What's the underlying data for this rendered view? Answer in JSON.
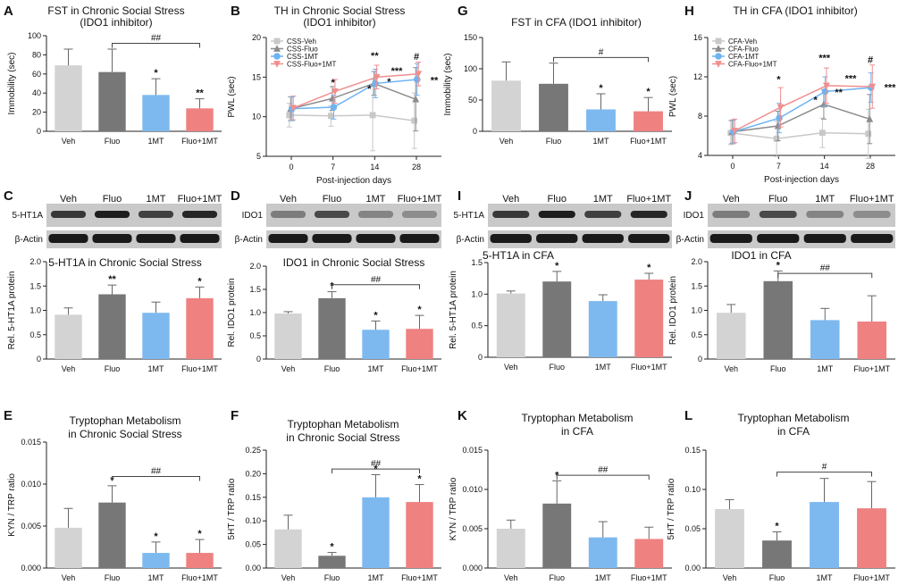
{
  "colors": {
    "veh": "#d3d3d3",
    "fluo": "#777777",
    "mt": "#7db9ef",
    "fluo_mt": "#ef8181",
    "line_veh": "#c8c8c8",
    "line_fluo": "#8c8c8c",
    "line_mt": "#6eb3f2",
    "line_fluo_mt": "#f08f8f"
  },
  "chart_data": [
    {
      "id": "A",
      "type": "bar",
      "title": "FST in Chronic Social Stress",
      "title2": "(IDO1 inhibitor)",
      "ylabel": "Immobility (sec)",
      "ylim": [
        0,
        100
      ],
      "yticks": [
        0,
        20,
        40,
        60,
        80,
        100
      ],
      "ytick_labels": [
        "0",
        "20",
        "40",
        "60",
        "80",
        "100"
      ],
      "categories": [
        "Veh",
        "Fluo",
        "1MT",
        "Fluo+1MT"
      ],
      "values": [
        69,
        62,
        38,
        24
      ],
      "errors": [
        17,
        24,
        17,
        10
      ],
      "stars": [
        "",
        "",
        "*",
        "**"
      ],
      "bracket": {
        "from": 1,
        "to": 3,
        "level": 92,
        "label": "##"
      }
    },
    {
      "id": "B",
      "type": "line",
      "title": "TH in Chronic Social Stress",
      "title2": "(IDO1 inhibitor)",
      "xlabel": "Post-injection days",
      "ylabel": "PWL (sec)",
      "ylim": [
        5,
        20
      ],
      "yticks": [
        5,
        10,
        15,
        20
      ],
      "ytick_labels": [
        "5",
        "10",
        "15",
        "20"
      ],
      "x": [
        "0",
        "7",
        "14",
        "28"
      ],
      "series": [
        {
          "name": "CSS-Veh",
          "values": [
            10.2,
            10.1,
            10.2,
            9.5
          ],
          "errors": [
            1.5,
            1.3,
            4.5,
            3.5
          ],
          "marker": "square",
          "color_key": "line_veh"
        },
        {
          "name": "CSS-Fluo",
          "values": [
            11.0,
            12.3,
            14.2,
            12.2
          ],
          "errors": [
            1.5,
            1.5,
            1.5,
            4.0
          ],
          "marker": "triangle",
          "color_key": "line_fluo"
        },
        {
          "name": "CSS-1MT",
          "values": [
            11.0,
            11.2,
            14.2,
            14.7
          ],
          "errors": [
            1.5,
            1.5,
            1.8,
            2.0
          ],
          "marker": "circle",
          "color_key": "line_mt"
        },
        {
          "name": "CSS-Fluo+1MT",
          "values": [
            11.1,
            13.2,
            15.0,
            15.4
          ],
          "errors": [
            1.5,
            1.5,
            1.5,
            1.5
          ],
          "marker": "triangle-down",
          "color_key": "line_fluo_mt"
        }
      ],
      "annotations": [
        {
          "x": 1,
          "y": 13.9,
          "label": "*"
        },
        {
          "x": 2,
          "y": 17.3,
          "label": "**"
        },
        {
          "x": 2,
          "y": 14.0,
          "label": "*",
          "dx": 16
        },
        {
          "x": 2,
          "y": 13.1,
          "label": "*",
          "dx": -6
        },
        {
          "x": 3,
          "y": 17.2,
          "label": "#"
        },
        {
          "x": 3,
          "y": 15.4,
          "label": "***",
          "dx": -22
        },
        {
          "x": 3,
          "y": 14.2,
          "label": "**",
          "dx": 20
        }
      ]
    },
    {
      "id": "G",
      "type": "bar",
      "title": "FST in CFA (IDO1 inhibitor)",
      "ylabel": "Immobility (sec)",
      "ylim": [
        0,
        150
      ],
      "yticks": [
        0,
        50,
        100,
        150
      ],
      "ytick_labels": [
        "0",
        "50",
        "100",
        "150"
      ],
      "categories": [
        "Veh",
        "Fluo",
        "1MT",
        "Fluo+1MT"
      ],
      "values": [
        81,
        76,
        35,
        32
      ],
      "errors": [
        30,
        33,
        25,
        22
      ],
      "stars": [
        "",
        "",
        "*",
        "*"
      ],
      "bracket": {
        "from": 1,
        "to": 3,
        "level": 118,
        "label": "#"
      }
    },
    {
      "id": "H",
      "type": "line",
      "title": "TH in CFA (IDO1 inhibitor)",
      "xlabel": "Post-injection days",
      "ylabel": "PWL (sec)",
      "ylim": [
        4,
        16
      ],
      "yticks": [
        4,
        8,
        12,
        16
      ],
      "ytick_labels": [
        "4",
        "8",
        "12",
        "16"
      ],
      "x": [
        "0",
        "7",
        "14",
        "28"
      ],
      "series": [
        {
          "name": "CFA-Veh",
          "values": [
            6.3,
            5.7,
            6.3,
            6.2
          ],
          "errors": [
            1.2,
            1.8,
            1.5,
            2.5
          ],
          "marker": "square",
          "color_key": "line_veh"
        },
        {
          "name": "CFA-Fluo",
          "values": [
            6.4,
            7.0,
            9.2,
            7.7
          ],
          "errors": [
            1.2,
            1.5,
            1.5,
            2.5
          ],
          "marker": "triangle",
          "color_key": "line_fluo"
        },
        {
          "name": "CFA-1MT",
          "values": [
            6.4,
            7.8,
            10.5,
            10.9
          ],
          "errors": [
            1.2,
            1.5,
            1.5,
            1.5
          ],
          "marker": "circle",
          "color_key": "line_mt"
        },
        {
          "name": "CFA-Fluo+1MT",
          "values": [
            6.5,
            8.9,
            11.1,
            11.0
          ],
          "errors": [
            1.2,
            2.0,
            1.8,
            2.2
          ],
          "marker": "triangle-down",
          "color_key": "line_fluo_mt"
        }
      ],
      "annotations": [
        {
          "x": 1,
          "y": 11.4,
          "label": "*"
        },
        {
          "x": 2,
          "y": 13.6,
          "label": "***"
        },
        {
          "x": 2,
          "y": 10.1,
          "label": "**",
          "dx": 16
        },
        {
          "x": 2,
          "y": 9.3,
          "label": "*",
          "dx": -10
        },
        {
          "x": 3,
          "y": 13.4,
          "label": "#"
        },
        {
          "x": 3,
          "y": 11.5,
          "label": "***",
          "dx": -22
        },
        {
          "x": 3,
          "y": 10.6,
          "label": "***",
          "dx": 22
        }
      ]
    },
    {
      "id": "C",
      "type": "bar",
      "title": "5-HT1A in Chronic Social Stress",
      "ylabel": "Rel. 5-HT1A protein",
      "ylim": [
        0,
        2.0
      ],
      "yticks": [
        0,
        0.5,
        1.0,
        1.5,
        2.0
      ],
      "ytick_labels": [
        "0",
        "0.5",
        "1.0",
        "1.5",
        "2.0"
      ],
      "categories": [
        "Veh",
        "Fluo",
        "1MT",
        "Fluo+1MT"
      ],
      "values": [
        0.91,
        1.33,
        0.95,
        1.25
      ],
      "errors": [
        0.14,
        0.19,
        0.22,
        0.23
      ],
      "stars": [
        "",
        "**",
        "",
        "*"
      ]
    },
    {
      "id": "D",
      "type": "bar",
      "title": "IDO1 in Chronic Social Stress",
      "ylabel": "Rel. IDO1 protein",
      "ylim": [
        0,
        2.0
      ],
      "yticks": [
        0,
        0.5,
        1.0,
        1.5,
        2.0
      ],
      "ytick_labels": [
        "0",
        "0.5",
        "1.0",
        "1.5",
        "2.0"
      ],
      "categories": [
        "Veh",
        "Fluo",
        "1MT",
        "Fluo+1MT"
      ],
      "values": [
        0.98,
        1.31,
        0.63,
        0.65
      ],
      "errors": [
        0.04,
        0.14,
        0.19,
        0.29
      ],
      "stars": [
        "",
        "*",
        "*",
        "*"
      ],
      "bracket": {
        "from": 1,
        "to": 3,
        "level": 1.6,
        "label": "##"
      }
    },
    {
      "id": "I",
      "type": "bar",
      "title": "5-HT1A in CFA",
      "ylabel": "Rel. 5-HT1A protein",
      "ylim": [
        0,
        1.5
      ],
      "yticks": [
        0,
        0.5,
        1.0,
        1.5
      ],
      "ytick_labels": [
        "0",
        "0.5",
        "1.0",
        "1.5"
      ],
      "categories": [
        "Veh",
        "Fluo",
        "1MT",
        "Fluo+1MT"
      ],
      "values": [
        1.01,
        1.2,
        0.89,
        1.23
      ],
      "errors": [
        0.04,
        0.16,
        0.1,
        0.1
      ],
      "stars": [
        "",
        "*",
        "",
        "*"
      ]
    },
    {
      "id": "J",
      "type": "bar",
      "title": "IDO1 in CFA",
      "ylabel": "Rel. IDO1 protein",
      "ylim": [
        0,
        2.0
      ],
      "yticks": [
        0,
        0.5,
        1.0,
        1.5,
        2.0
      ],
      "ytick_labels": [
        "0",
        "0.5",
        "1.0",
        "1.5",
        "2.0"
      ],
      "categories": [
        "Veh",
        "Fluo",
        "1MT",
        "Fluo+1MT"
      ],
      "values": [
        0.95,
        1.6,
        0.8,
        0.77
      ],
      "errors": [
        0.17,
        0.21,
        0.24,
        0.53
      ],
      "stars": [
        "",
        "*",
        "",
        ""
      ],
      "bracket": {
        "from": 1,
        "to": 3,
        "level": 1.76,
        "label": "##"
      }
    },
    {
      "id": "E",
      "type": "bar",
      "title": "Tryptophan Metabolism",
      "title2": "in Chronic Social Stress",
      "ylabel": "KYN / TRP ratio",
      "ylim": [
        0,
        0.015
      ],
      "yticks": [
        0,
        0.005,
        0.01,
        0.015
      ],
      "ytick_labels": [
        "0.000",
        "0.005",
        "0.010",
        "0.015"
      ],
      "categories": [
        "Veh",
        "Fluo",
        "1MT",
        "Fluo+1MT"
      ],
      "values": [
        0.0048,
        0.0078,
        0.0018,
        0.0018
      ],
      "errors": [
        0.0023,
        0.002,
        0.0013,
        0.0016
      ],
      "stars": [
        "",
        "*",
        "*",
        "*"
      ],
      "bracket": {
        "from": 1,
        "to": 3,
        "level": 0.0109,
        "label": "##"
      }
    },
    {
      "id": "F",
      "type": "bar",
      "title": "Tryptophan Metabolism",
      "title2": "in Chronic Social Stress",
      "ylabel": "5HT / TRP ratio",
      "ylim": [
        0,
        0.25
      ],
      "yticks": [
        0,
        0.05,
        0.1,
        0.15,
        0.2,
        0.25
      ],
      "ytick_labels": [
        "0.00",
        "0.05",
        "0.10",
        "0.15",
        "0.20",
        "0.25"
      ],
      "categories": [
        "Veh",
        "Fluo",
        "1MT",
        "Fluo+1MT"
      ],
      "values": [
        0.082,
        0.026,
        0.15,
        0.14
      ],
      "errors": [
        0.03,
        0.007,
        0.048,
        0.037
      ],
      "stars": [
        "",
        "*",
        "*",
        "*"
      ],
      "bracket": {
        "from": 1,
        "to": 3,
        "level": 0.21,
        "label": "##"
      }
    },
    {
      "id": "K",
      "type": "bar",
      "title": "Tryptophan Metabolism",
      "title2": "in CFA",
      "ylabel": "KYN / TRP ratio",
      "ylim": [
        0,
        0.015
      ],
      "yticks": [
        0,
        0.005,
        0.01,
        0.015
      ],
      "ytick_labels": [
        "0.000",
        "0.005",
        "0.010",
        "0.015"
      ],
      "categories": [
        "Veh",
        "Fluo",
        "1MT",
        "Fluo+1MT"
      ],
      "values": [
        0.005,
        0.0082,
        0.0039,
        0.0037
      ],
      "errors": [
        0.0011,
        0.0029,
        0.002,
        0.0015
      ],
      "stars": [
        "",
        "*",
        "",
        ""
      ],
      "bracket": {
        "from": 1,
        "to": 3,
        "level": 0.0118,
        "label": "##"
      }
    },
    {
      "id": "L",
      "type": "bar",
      "title": "Tryptophan Metabolism",
      "title2": "in CFA",
      "ylabel": "5HT / TRP ratio",
      "ylim": [
        0,
        0.15
      ],
      "yticks": [
        0,
        0.05,
        0.1,
        0.15
      ],
      "ytick_labels": [
        "0.00",
        "0.05",
        "0.10",
        "0.15"
      ],
      "categories": [
        "Veh",
        "Fluo",
        "1MT",
        "Fluo+1MT"
      ],
      "values": [
        0.075,
        0.035,
        0.084,
        0.076
      ],
      "errors": [
        0.012,
        0.011,
        0.03,
        0.034
      ],
      "stars": [
        "",
        "*",
        "",
        ""
      ],
      "bracket": {
        "from": 1,
        "to": 3,
        "level": 0.122,
        "label": "#"
      }
    }
  ],
  "blots": [
    {
      "id": "C",
      "labels": [
        "Veh",
        "Fluo",
        "1MT",
        "Fluo+1MT"
      ],
      "row1": "5-HT1A",
      "row2": "β-Actin"
    },
    {
      "id": "D",
      "labels": [
        "Veh",
        "Fluo",
        "1MT",
        "Fluo+1MT"
      ],
      "row1": "IDO1",
      "row2": "β-Actin"
    },
    {
      "id": "I",
      "labels": [
        "Veh",
        "Fluo",
        "1MT",
        "Fluo+1MT"
      ],
      "row1": "5-HT1A",
      "row2": "β-Actin"
    },
    {
      "id": "J",
      "labels": [
        "Veh",
        "Fluo",
        "1MT",
        "Fluo+1MT"
      ],
      "row1": "IDO1",
      "row2": "β-Actin"
    }
  ]
}
